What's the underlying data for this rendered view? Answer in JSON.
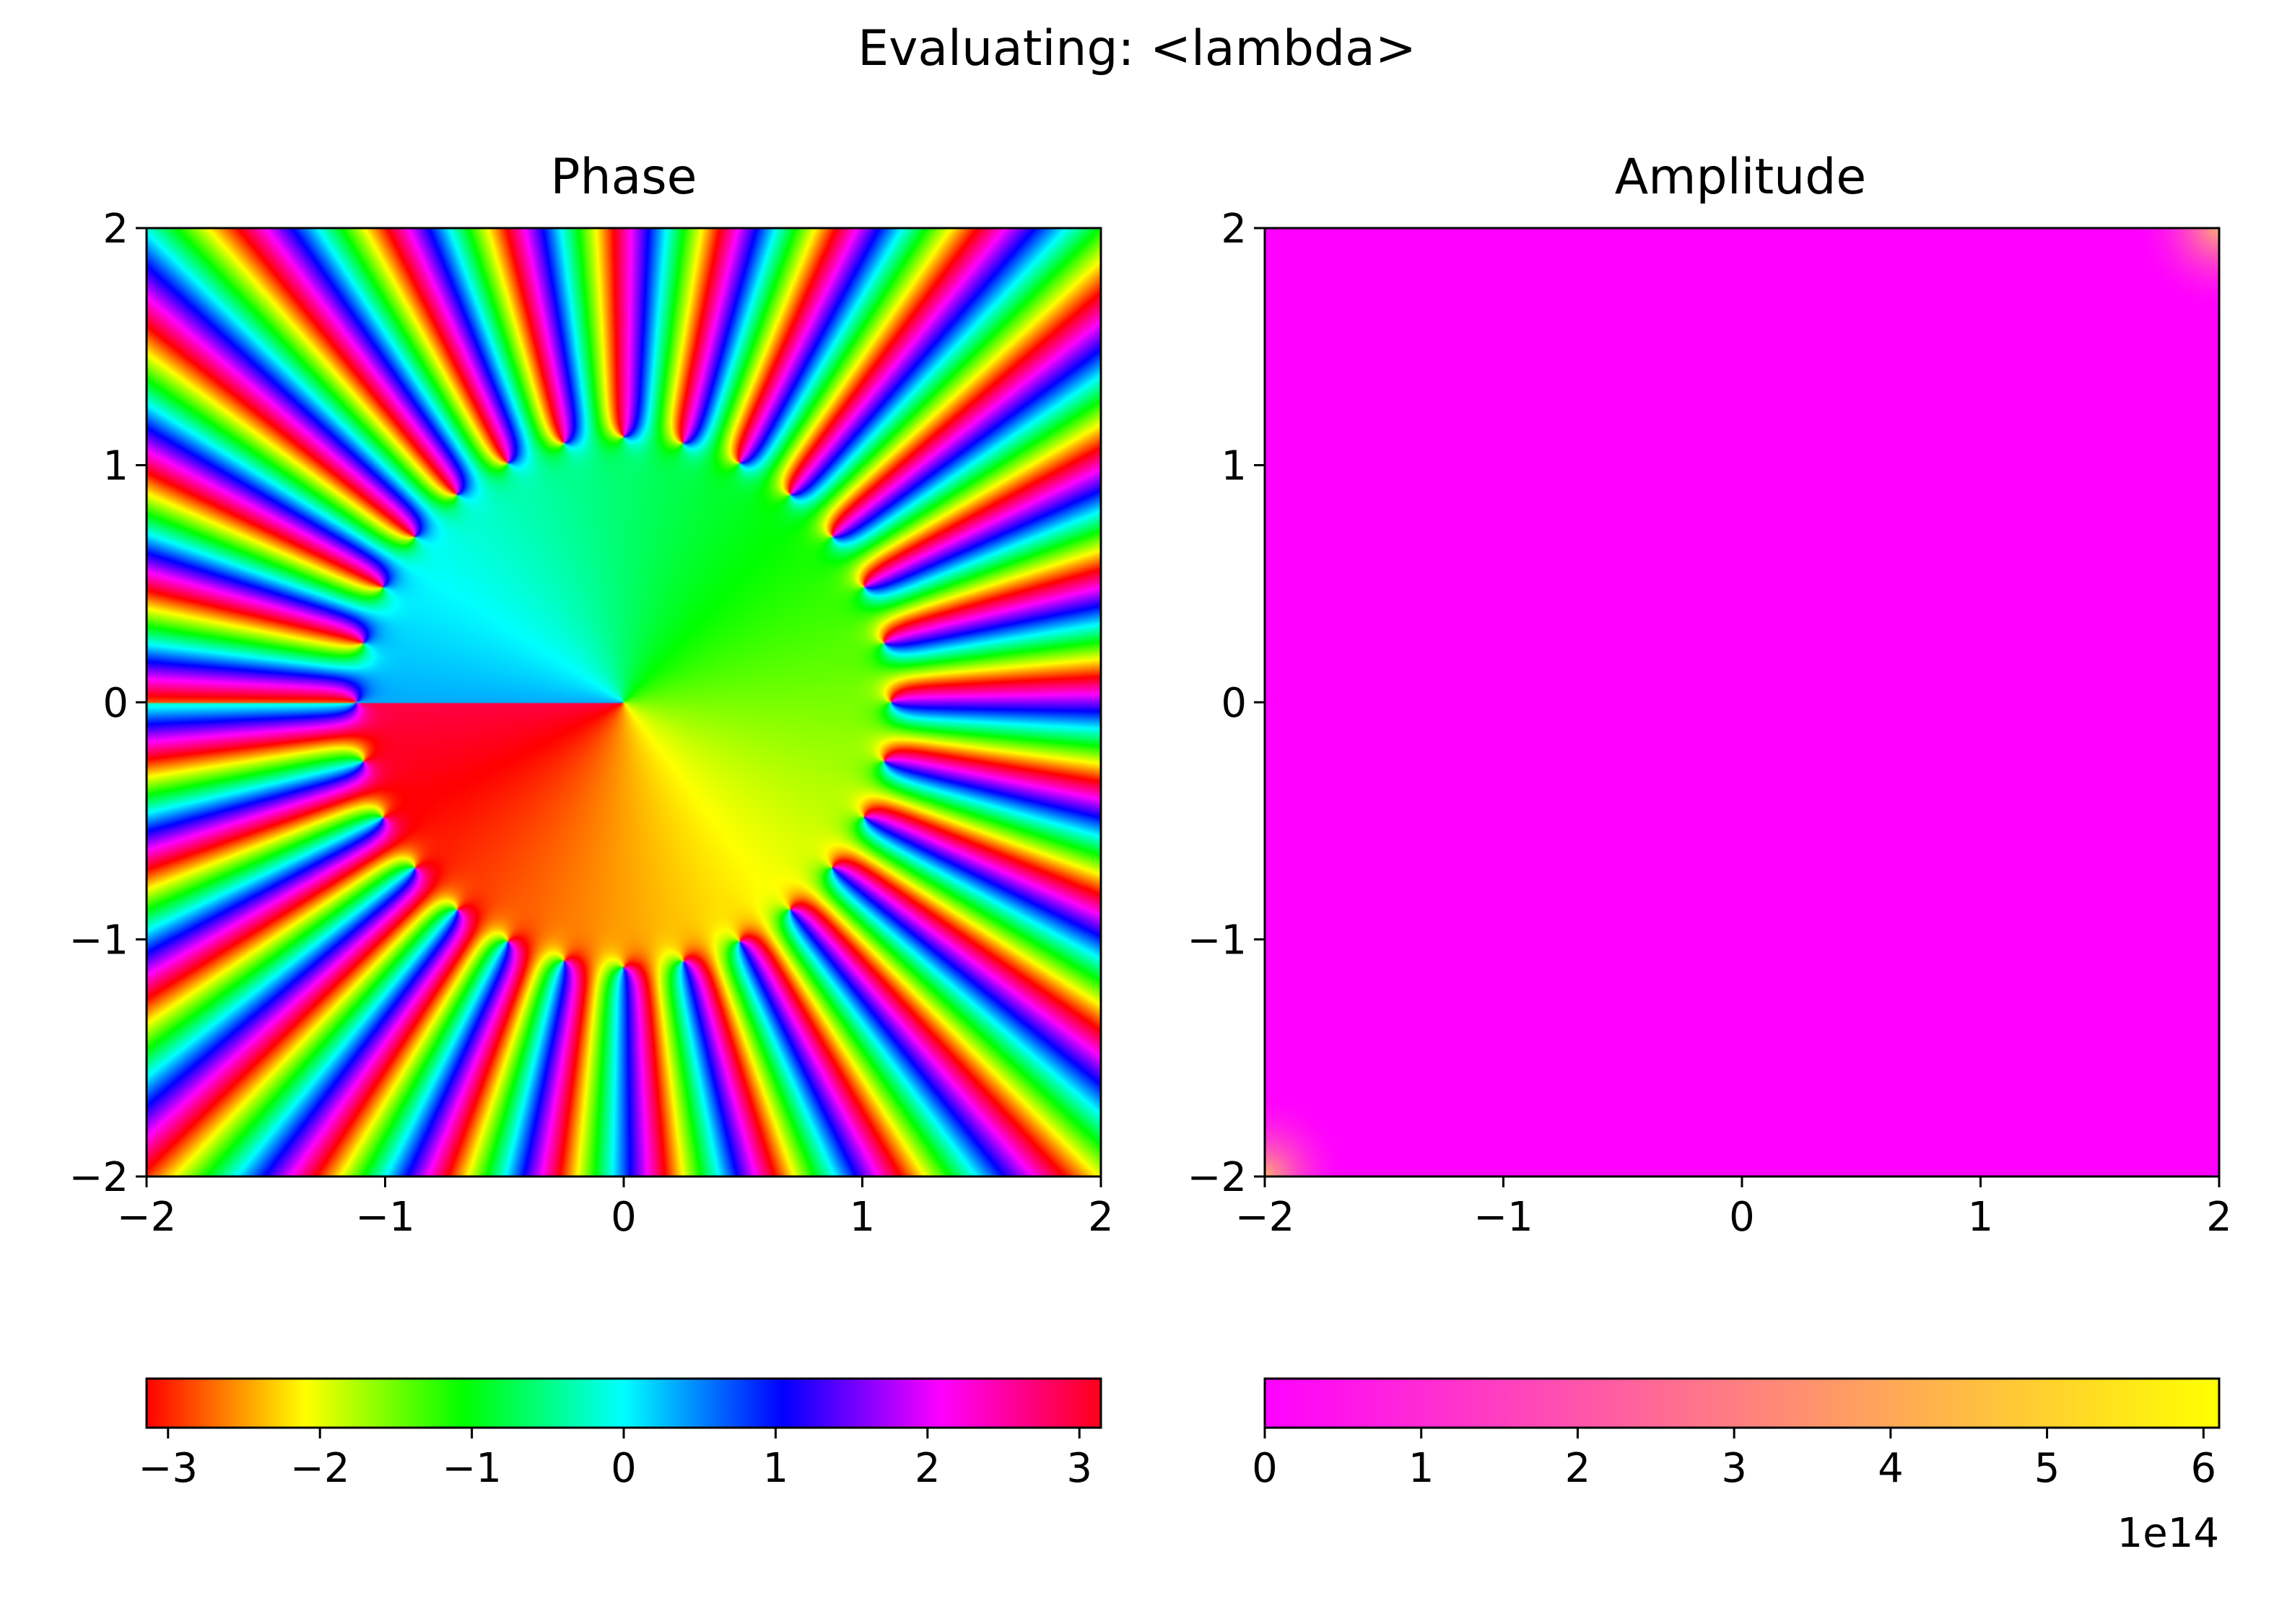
{
  "suptitle": "Evaluating: <lambda>",
  "chart_data": [
    {
      "type": "heatmap",
      "title": "Phase",
      "description_of_field": "phase of a polynomial-like complex function with many zeros on a ring",
      "xlim": [
        -2,
        2
      ],
      "ylim": [
        -2,
        2
      ],
      "xticks": [
        "−2",
        "−1",
        "0",
        "1",
        "2"
      ],
      "yticks": [
        "2",
        "1",
        "0",
        "−1",
        "−2"
      ],
      "colormap": "hsv",
      "colorbar": {
        "range": [
          -3.14159,
          3.14159
        ],
        "ticks": [
          "−3",
          "−2",
          "−1",
          "0",
          "1",
          "2",
          "3"
        ],
        "tick_values": [
          -3,
          -2,
          -1,
          0,
          1,
          2,
          3
        ]
      }
    },
    {
      "type": "heatmap",
      "title": "Amplitude",
      "xlim": [
        -2,
        2
      ],
      "ylim": [
        -2,
        2
      ],
      "xticks": [
        "−2",
        "−1",
        "0",
        "1",
        "2"
      ],
      "yticks": [
        "2",
        "1",
        "0",
        "−1",
        "−2"
      ],
      "colormap": "spring",
      "fill_color": "#ff00ff",
      "corner_color": "#ffb070",
      "colorbar": {
        "range": [
          0,
          6.1
        ],
        "ticks": [
          "0",
          "1",
          "2",
          "3",
          "4",
          "5",
          "6"
        ],
        "tick_values": [
          0,
          1,
          2,
          3,
          4,
          5,
          6
        ],
        "offset_label": "1e14"
      }
    }
  ]
}
